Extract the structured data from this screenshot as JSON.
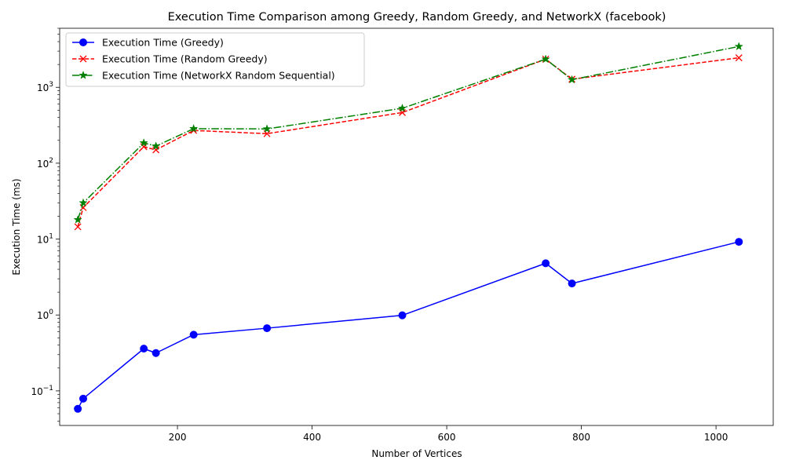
{
  "chart_data": {
    "type": "line",
    "title": "Execution Time Comparison among Greedy, Random Greedy, and NetworkX (facebook)",
    "xlabel": "Number of Vertices",
    "ylabel": "Execution Time (ms)",
    "xlim": [
      25,
      1085
    ],
    "ylim": [
      0.035,
      6000
    ],
    "yscale": "log",
    "grid": false,
    "legend_position": "top-left",
    "x_ticks": [
      200,
      400,
      600,
      800,
      1000
    ],
    "x_tick_labels": [
      "200",
      "400",
      "600",
      "800",
      "1000"
    ],
    "y_ticks": [
      0.1,
      1,
      10,
      100,
      1000
    ],
    "y_tick_labels": [
      {
        "base": "10",
        "exp": "−1"
      },
      {
        "base": "10",
        "exp": "0"
      },
      {
        "base": "10",
        "exp": "1"
      },
      {
        "base": "10",
        "exp": "2"
      },
      {
        "base": "10",
        "exp": "3"
      }
    ],
    "series": [
      {
        "name": "Execution Time (Greedy)",
        "color": "#0000ff",
        "line_style": "solid",
        "marker": "circle",
        "x": [
          52,
          60,
          150,
          168,
          224,
          333,
          534,
          747,
          786,
          1034
        ],
        "y": [
          0.058,
          0.079,
          0.36,
          0.315,
          0.55,
          0.67,
          0.99,
          4.8,
          2.6,
          9.2
        ]
      },
      {
        "name": "Execution Time (Random Greedy)",
        "color": "#ff0000",
        "line_style": "dashed",
        "marker": "x",
        "x": [
          52,
          60,
          150,
          168,
          224,
          333,
          534,
          747,
          786,
          1034
        ],
        "y": [
          14.5,
          26,
          165,
          150,
          270,
          245,
          465,
          2350,
          1280,
          2450
        ]
      },
      {
        "name": "Execution Time (NetworkX Random Sequential)",
        "color": "#008000",
        "line_style": "dashdot",
        "marker": "star",
        "x": [
          52,
          60,
          150,
          168,
          224,
          333,
          534,
          747,
          786,
          1034
        ],
        "y": [
          18,
          30,
          185,
          168,
          285,
          283,
          530,
          2350,
          1260,
          3450
        ]
      }
    ]
  }
}
